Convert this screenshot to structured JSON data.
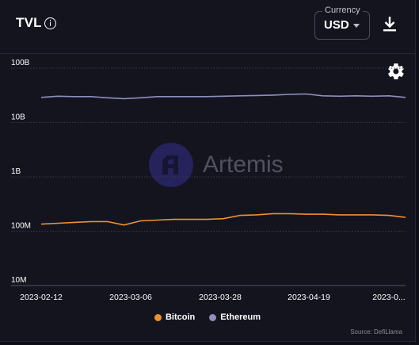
{
  "header": {
    "title": "TVL"
  },
  "currency": {
    "label": "Currency",
    "value": "USD"
  },
  "watermark": "Artemis",
  "source": "Source: DefiLlama",
  "colors": {
    "bitcoin": "#f0902f",
    "ethereum": "#8e8fbf",
    "grid": "#3a3a4a",
    "background": "#14141f"
  },
  "chart_data": {
    "type": "line",
    "title": "TVL",
    "y_scale": "log",
    "ylim": [
      10000000,
      100000000000
    ],
    "y_ticks": [
      "100B",
      "10B",
      "1B",
      "100M",
      "10M"
    ],
    "x": [
      "2023-02-12",
      "2023-02-16",
      "2023-02-20",
      "2023-02-24",
      "2023-02-28",
      "2023-03-04",
      "2023-03-08",
      "2023-03-12",
      "2023-03-16",
      "2023-03-20",
      "2023-03-24",
      "2023-03-28",
      "2023-04-01",
      "2023-04-05",
      "2023-04-09",
      "2023-04-13",
      "2023-04-17",
      "2023-04-21",
      "2023-04-25",
      "2023-04-29",
      "2023-05-03",
      "2023-05-07",
      "2023-05-11"
    ],
    "x_ticks": [
      "2023-02-12",
      "2023-03-06",
      "2023-03-28",
      "2023-04-19",
      "2023-0..."
    ],
    "grid": "horizontal",
    "legend": "bottom-center",
    "series": [
      {
        "name": "Bitcoin",
        "color": "#f0902f",
        "values": [
          135000000,
          140000000,
          145000000,
          150000000,
          150000000,
          130000000,
          155000000,
          160000000,
          165000000,
          165000000,
          165000000,
          170000000,
          195000000,
          200000000,
          210000000,
          210000000,
          205000000,
          205000000,
          200000000,
          200000000,
          200000000,
          195000000,
          180000000
        ]
      },
      {
        "name": "Ethereum",
        "color": "#8e8fbf",
        "values": [
          29000000000,
          30500000000,
          30000000000,
          30000000000,
          28500000000,
          27500000000,
          28500000000,
          30000000000,
          30000000000,
          30000000000,
          30000000000,
          30500000000,
          31000000000,
          31500000000,
          32000000000,
          33000000000,
          33500000000,
          31000000000,
          30500000000,
          31000000000,
          30500000000,
          31000000000,
          29000000000
        ]
      }
    ]
  },
  "legend": {
    "items": [
      {
        "label": "Bitcoin"
      },
      {
        "label": "Ethereum"
      }
    ]
  }
}
